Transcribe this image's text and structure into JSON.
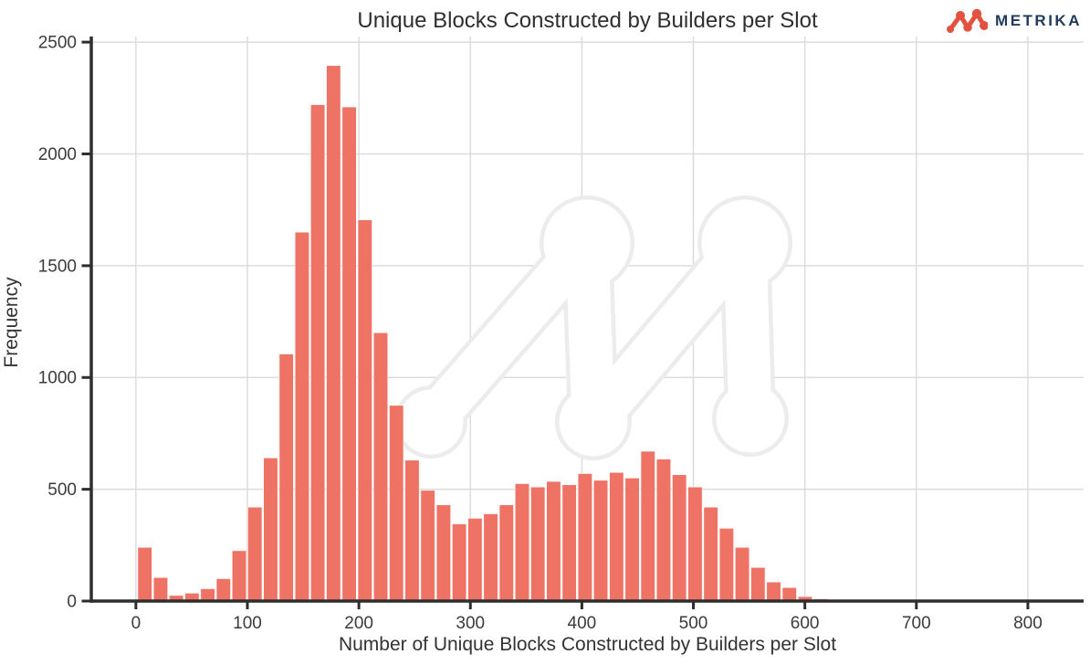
{
  "page": {
    "background": "#ffffff",
    "white": "#ffffff"
  },
  "branding": {
    "name": "METRIKA",
    "text_color": "#1f3a5c",
    "mark_color": "#e2523f",
    "watermark_color": "#ececec",
    "mark_icon": "metrika-dots-logo"
  },
  "chart_data": {
    "type": "bar",
    "subtype": "histogram",
    "title": "Unique Blocks Constructed by Builders per Slot",
    "xlabel": "Number of Unique Blocks Constructed by Builders per Slot",
    "ylabel": "Frequency",
    "bin_start": 1,
    "bin_width": 14.1,
    "values": [
      240,
      105,
      25,
      35,
      55,
      100,
      225,
      420,
      640,
      1105,
      1650,
      2220,
      2395,
      2210,
      1705,
      1200,
      875,
      630,
      495,
      430,
      345,
      370,
      390,
      430,
      525,
      510,
      535,
      520,
      570,
      540,
      575,
      550,
      670,
      635,
      565,
      510,
      420,
      325,
      240,
      150,
      85,
      60,
      20,
      10
    ],
    "xticks": [
      0,
      100,
      200,
      300,
      400,
      500,
      600,
      700,
      800
    ],
    "yticks": [
      0,
      500,
      1000,
      1500,
      2000,
      2500
    ],
    "xlim": [
      -40,
      850
    ],
    "ylim": [
      0,
      2525
    ],
    "grid": true,
    "legend": "none",
    "colors": {
      "bar": "#ee7365",
      "bar_edge": "#ffffff",
      "grid": "#dcdcdc",
      "axis": "#2e2e2e",
      "tick_label": "#3b3b3b"
    }
  }
}
